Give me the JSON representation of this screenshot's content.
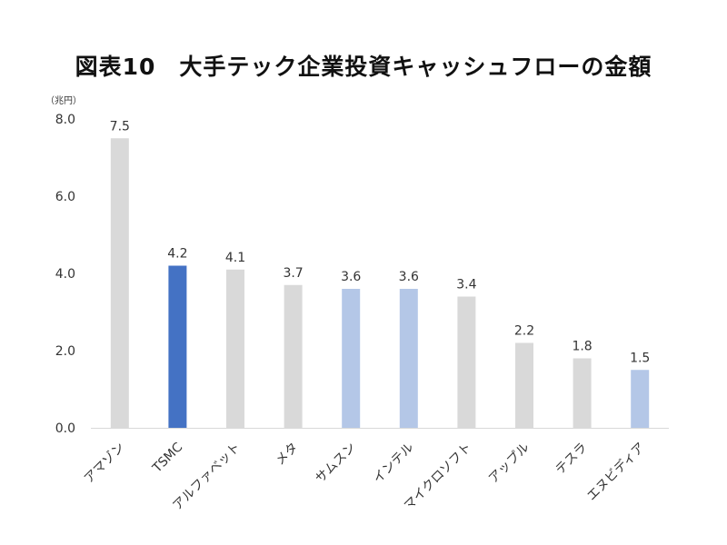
{
  "chart_data": {
    "type": "bar",
    "title": "図表10　大手テック企業投資キャッシュフローの金額",
    "unit_label": "（兆円）",
    "ylim": [
      0,
      8
    ],
    "yticks": [
      0,
      2,
      4,
      6,
      8
    ],
    "ytick_labels": [
      "0.0",
      "2.0",
      "4.0",
      "6.0",
      "8.0"
    ],
    "categories": [
      "アマゾン",
      "TSMC",
      "アルファベット",
      "メタ",
      "サムスン",
      "インテル",
      "マイクロソフト",
      "アップル",
      "テスラ",
      "エヌビディア"
    ],
    "values": [
      7.5,
      4.2,
      4.1,
      3.7,
      3.6,
      3.6,
      3.4,
      2.2,
      1.8,
      1.5
    ],
    "value_labels": [
      "7.5",
      "4.2",
      "4.1",
      "3.7",
      "3.6",
      "3.6",
      "3.4",
      "2.2",
      "1.8",
      "1.5"
    ],
    "bar_colors": [
      "#d9d9d9",
      "#4472c4",
      "#d9d9d9",
      "#d9d9d9",
      "#b4c7e7",
      "#b4c7e7",
      "#d9d9d9",
      "#d9d9d9",
      "#d9d9d9",
      "#b4c7e7"
    ],
    "axis_color": "#d9d9d9",
    "grid": false,
    "legend": "none"
  }
}
